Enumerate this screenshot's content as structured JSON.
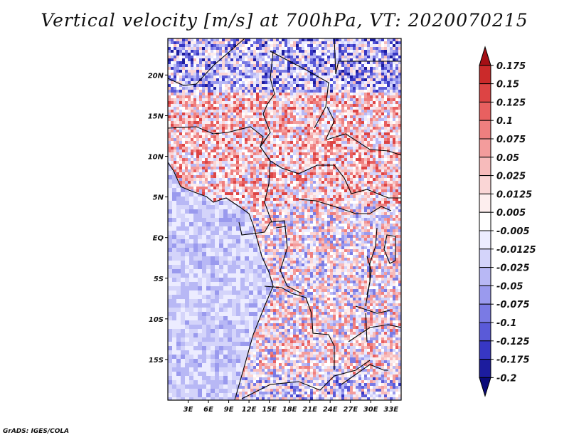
{
  "title": "Vertical velocity [m/s] at 700hPa, VT: 2020070215",
  "credit": "GrADS: IGES/COLA",
  "map": {
    "lon_range": [
      0,
      34.5
    ],
    "lat_range": [
      -20,
      24.5
    ],
    "lon_ticks": [
      "3E",
      "6E",
      "9E",
      "12E",
      "15E",
      "18E",
      "21E",
      "24E",
      "27E",
      "30E",
      "33E"
    ],
    "lat_ticks": [
      "20N",
      "15N",
      "10N",
      "5N",
      "EQ",
      "5S",
      "10S",
      "15S"
    ],
    "field": "vertical velocity",
    "units": "m/s",
    "level": "700hPa",
    "valid_time": "2020070215"
  },
  "colorbar": {
    "levels": [
      "0.175",
      "0.15",
      "0.125",
      "0.1",
      "0.075",
      "0.05",
      "0.025",
      "0.0125",
      "0.005",
      "-0.005",
      "-0.0125",
      "-0.025",
      "-0.05",
      "-0.075",
      "-0.1",
      "-0.125",
      "-0.175",
      "-0.2"
    ],
    "colors": [
      "#a50f15",
      "#cb2a2a",
      "#dd4444",
      "#e86060",
      "#ef7f7f",
      "#f39c9c",
      "#f7bbbb",
      "#fad6d6",
      "#fdeeee",
      "#ffffff",
      "#ececff",
      "#d4d4fa",
      "#b8b8f5",
      "#9a9aee",
      "#7a7ae4",
      "#5a5ad8",
      "#3737c4",
      "#1c1c9e",
      "#0a0a78"
    ]
  }
}
